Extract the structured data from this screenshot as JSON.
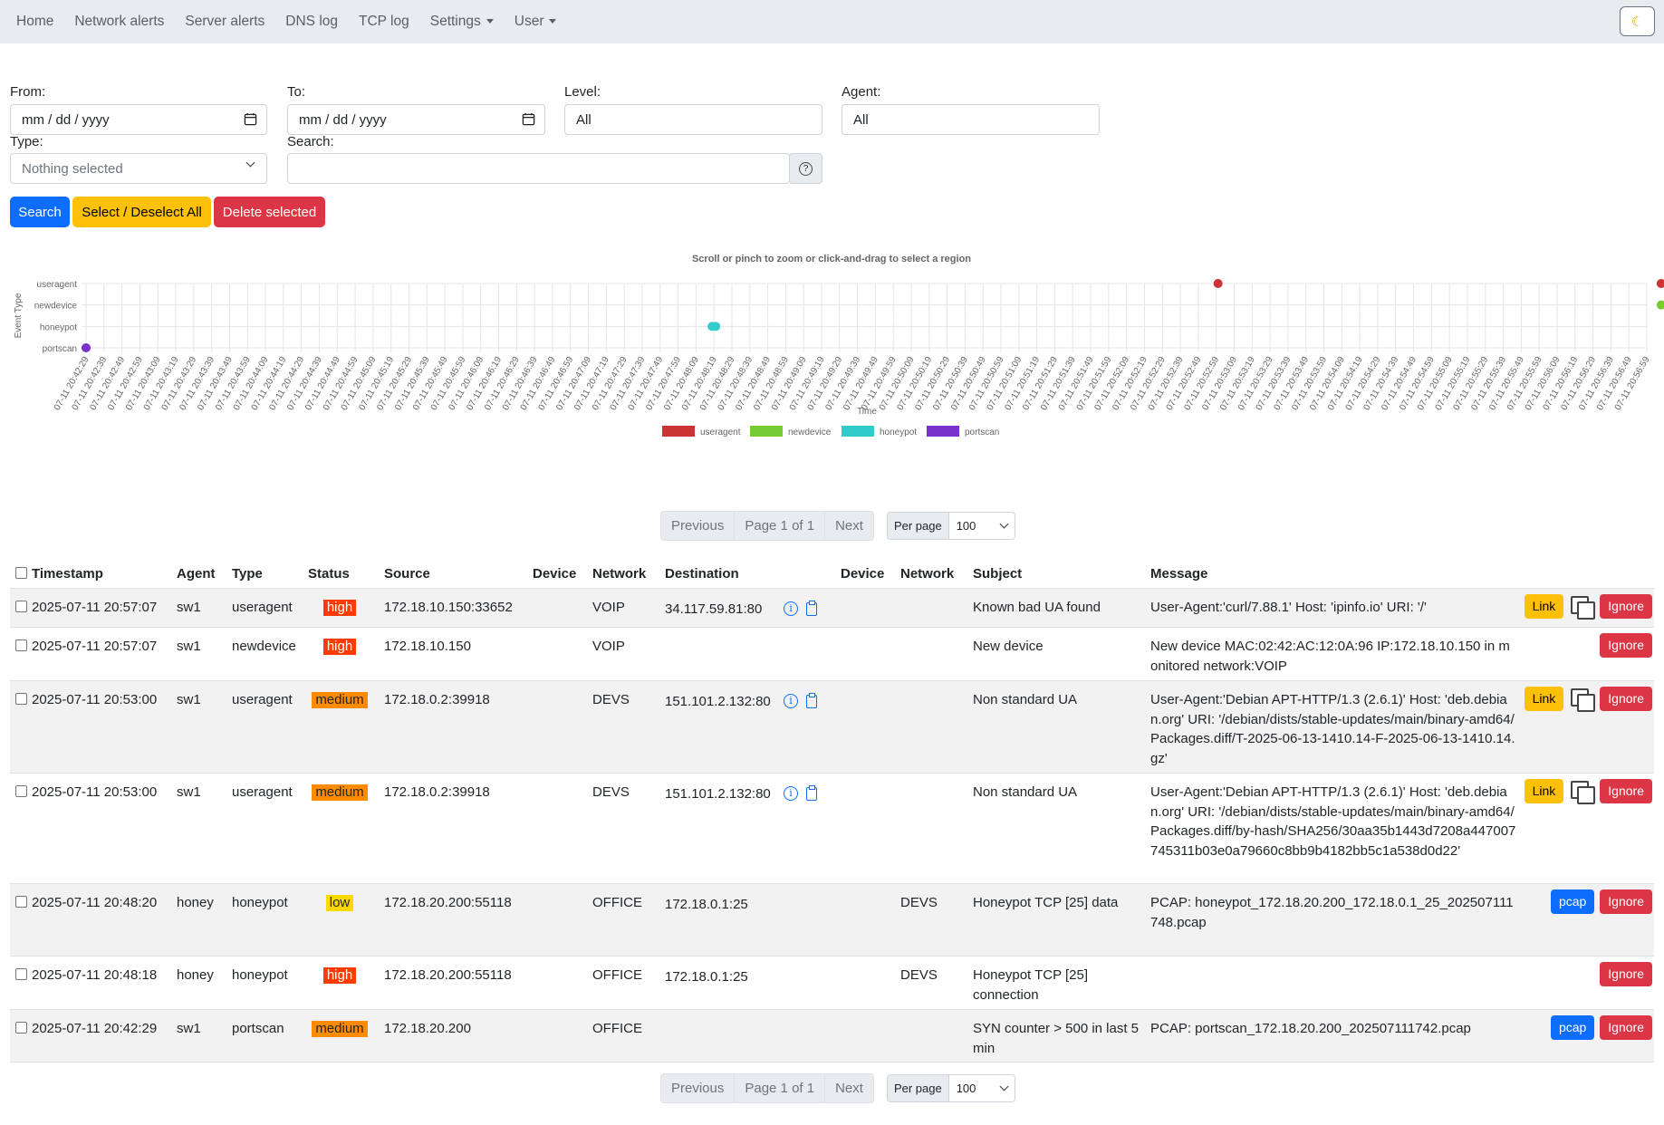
{
  "nav": {
    "items": [
      "Home",
      "Network alerts",
      "Server alerts",
      "DNS log",
      "TCP log"
    ],
    "settings": "Settings",
    "user": "User",
    "theme_icon": "moon-icon"
  },
  "filters": {
    "from_label": "From:",
    "from_value": "mm / dd / yyyy",
    "to_label": "To:",
    "to_value": "mm / dd / yyyy",
    "level_label": "Level:",
    "level_value": "All",
    "agent_label": "Agent:",
    "agent_value": "All",
    "type_label": "Type:",
    "type_value": "Nothing selected",
    "search_label": "Search:",
    "search_value": "",
    "help_symbol": "?",
    "search_button": "Search",
    "select_all_button": "Select / Deselect All",
    "delete_button": "Delete selected"
  },
  "chart_data": {
    "type": "scatter",
    "title": "Scroll or pinch to zoom or click-and-drag to select a region",
    "xlabel": "Time",
    "ylabel": "Event Type",
    "categories": [
      "portscan",
      "honeypot",
      "newdevice",
      "useragent"
    ],
    "x_ticks": [
      "07-11 20:42:29",
      "07-11 20:42:39",
      "07-11 20:42:49",
      "07-11 20:42:59",
      "07-11 20:43:09",
      "07-11 20:43:19",
      "07-11 20:43:29",
      "07-11 20:43:39",
      "07-11 20:43:49",
      "07-11 20:43:59",
      "07-11 20:44:09",
      "07-11 20:44:19",
      "07-11 20:44:29",
      "07-11 20:44:39",
      "07-11 20:44:49",
      "07-11 20:44:59",
      "07-11 20:45:09",
      "07-11 20:45:19",
      "07-11 20:45:29",
      "07-11 20:45:39",
      "07-11 20:45:49",
      "07-11 20:45:59",
      "07-11 20:46:09",
      "07-11 20:46:19",
      "07-11 20:46:29",
      "07-11 20:46:39",
      "07-11 20:46:49",
      "07-11 20:46:59",
      "07-11 20:47:09",
      "07-11 20:47:19",
      "07-11 20:47:29",
      "07-11 20:47:39",
      "07-11 20:47:49",
      "07-11 20:47:59",
      "07-11 20:48:09",
      "07-11 20:48:19",
      "07-11 20:48:29",
      "07-11 20:48:39",
      "07-11 20:48:49",
      "07-11 20:48:59",
      "07-11 20:49:09",
      "07-11 20:49:19",
      "07-11 20:49:29",
      "07-11 20:49:39",
      "07-11 20:49:49",
      "07-11 20:49:59",
      "07-11 20:50:09",
      "07-11 20:50:19",
      "07-11 20:50:29",
      "07-11 20:50:39",
      "07-11 20:50:49",
      "07-11 20:50:59",
      "07-11 20:51:09",
      "07-11 20:51:19",
      "07-11 20:51:29",
      "07-11 20:51:39",
      "07-11 20:51:49",
      "07-11 20:51:59",
      "07-11 20:52:09",
      "07-11 20:52:19",
      "07-11 20:52:29",
      "07-11 20:52:39",
      "07-11 20:52:49",
      "07-11 20:52:59",
      "07-11 20:53:09",
      "07-11 20:53:19",
      "07-11 20:53:29",
      "07-11 20:53:39",
      "07-11 20:53:49",
      "07-11 20:53:59",
      "07-11 20:54:09",
      "07-11 20:54:19",
      "07-11 20:54:29",
      "07-11 20:54:39",
      "07-11 20:54:49",
      "07-11 20:54:59",
      "07-11 20:55:09",
      "07-11 20:55:19",
      "07-11 20:55:29",
      "07-11 20:55:39",
      "07-11 20:55:49",
      "07-11 20:55:59",
      "07-11 20:56:09",
      "07-11 20:56:19",
      "07-11 20:56:29",
      "07-11 20:56:39",
      "07-11 20:56:49",
      "07-11 20:56:59"
    ],
    "series": [
      {
        "name": "useragent",
        "color": "#cc3333",
        "points": [
          {
            "x": "07-11 20:53:00",
            "y": "useragent"
          },
          {
            "x": "07-11 20:57:07",
            "y": "useragent"
          }
        ]
      },
      {
        "name": "newdevice",
        "color": "#77cc33",
        "points": [
          {
            "x": "07-11 20:57:07",
            "y": "newdevice"
          }
        ]
      },
      {
        "name": "honeypot",
        "color": "#33cccc",
        "points": [
          {
            "x": "07-11 20:48:18",
            "y": "honeypot"
          },
          {
            "x": "07-11 20:48:20",
            "y": "honeypot"
          }
        ]
      },
      {
        "name": "portscan",
        "color": "#7733cc",
        "points": [
          {
            "x": "07-11 20:42:29",
            "y": "portscan"
          }
        ]
      }
    ],
    "grid": true,
    "legend": "bottom-center"
  },
  "pager": {
    "previous": "Previous",
    "page_info": "Page 1 of 1",
    "next": "Next",
    "per_page_label": "Per page",
    "per_page_value": "100"
  },
  "table": {
    "headers": {
      "timestamp": "Timestamp",
      "agent": "Agent",
      "type": "Type",
      "status": "Status",
      "source": "Source",
      "device": "Device",
      "network": "Network",
      "destination": "Destination",
      "device2": "Device",
      "network2": "Network",
      "subject": "Subject",
      "message": "Message"
    },
    "rows": [
      {
        "timestamp": "2025-07-11 20:57:07",
        "agent": "sw1",
        "type": "useragent",
        "status": "high",
        "source": "172.18.10.150:33652",
        "device": "",
        "network": "VOIP",
        "destination": "34.117.59.81:80",
        "dest_icons": true,
        "device2": "",
        "network2": "",
        "subject": "Known bad UA found",
        "message": "User-Agent:'curl/7.88.1' Host: 'ipinfo.io' URI: '/'",
        "actions": [
          "Link",
          "copy",
          "Ignore"
        ]
      },
      {
        "timestamp": "2025-07-11 20:57:07",
        "agent": "sw1",
        "type": "newdevice",
        "status": "high",
        "source": "172.18.10.150",
        "device": "",
        "network": "VOIP",
        "destination": "",
        "dest_icons": false,
        "device2": "",
        "network2": "",
        "subject": "New device",
        "message": "New device MAC:02:42:AC:12:0A:96 IP:172.18.10.150 in monitored network:VOIP",
        "actions": [
          "Ignore"
        ]
      },
      {
        "timestamp": "2025-07-11 20:53:00",
        "agent": "sw1",
        "type": "useragent",
        "status": "medium",
        "source": "172.18.0.2:39918",
        "device": "",
        "network": "DEVS",
        "destination": "151.101.2.132:80",
        "dest_icons": true,
        "device2": "",
        "network2": "",
        "subject": "Non standard UA",
        "message": "User-Agent:'Debian APT-HTTP/1.3 (2.6.1)' Host: 'deb.debian.org' URI: '/debian/dists/stable-updates/main/binary-amd64/Packages.diff/T-2025-06-13-1410.14-F-2025-06-13-1410.14.gz'",
        "actions": [
          "Link",
          "copy",
          "Ignore"
        ]
      },
      {
        "timestamp": "2025-07-11 20:53:00",
        "agent": "sw1",
        "type": "useragent",
        "status": "medium",
        "source": "172.18.0.2:39918",
        "device": "",
        "network": "DEVS",
        "destination": "151.101.2.132:80",
        "dest_icons": true,
        "device2": "",
        "network2": "",
        "subject": "Non standard UA",
        "message": "User-Agent:'Debian APT-HTTP/1.3 (2.6.1)' Host: 'deb.debian.org' URI: '/debian/dists/stable-updates/main/binary-amd64/Packages.diff/by-hash/SHA256/30aa35b1443d7208a447007745311b03e0a79660c8bb9b4182bb5c1a538d0d22'",
        "actions": [
          "Link",
          "copy",
          "Ignore"
        ]
      },
      {
        "timestamp": "2025-07-11 20:48:20",
        "agent": "honey",
        "type": "honeypot",
        "status": "low",
        "source": "172.18.20.200:55118",
        "device": "",
        "network": "OFFICE",
        "destination": "172.18.0.1:25",
        "dest_icons": false,
        "device2": "",
        "network2": "DEVS",
        "subject": "Honeypot TCP [25] data",
        "message": "PCAP: honeypot_172.18.20.200_172.18.0.1_25_202507111748.pcap",
        "actions": [
          "pcap",
          "Ignore"
        ]
      },
      {
        "timestamp": "2025-07-11 20:48:18",
        "agent": "honey",
        "type": "honeypot",
        "status": "high",
        "source": "172.18.20.200:55118",
        "device": "",
        "network": "OFFICE",
        "destination": "172.18.0.1:25",
        "dest_icons": false,
        "device2": "",
        "network2": "DEVS",
        "subject": "Honeypot TCP [25] connection",
        "message": "",
        "actions": [
          "Ignore"
        ]
      },
      {
        "timestamp": "2025-07-11 20:42:29",
        "agent": "sw1",
        "type": "portscan",
        "status": "medium",
        "source": "172.18.20.200",
        "device": "",
        "network": "OFFICE",
        "destination": "",
        "dest_icons": false,
        "device2": "",
        "network2": "",
        "subject": "SYN counter > 500 in last 5 min",
        "message": "PCAP: portscan_172.18.20.200_202507111742.pcap",
        "actions": [
          "pcap",
          "Ignore"
        ]
      }
    ]
  }
}
